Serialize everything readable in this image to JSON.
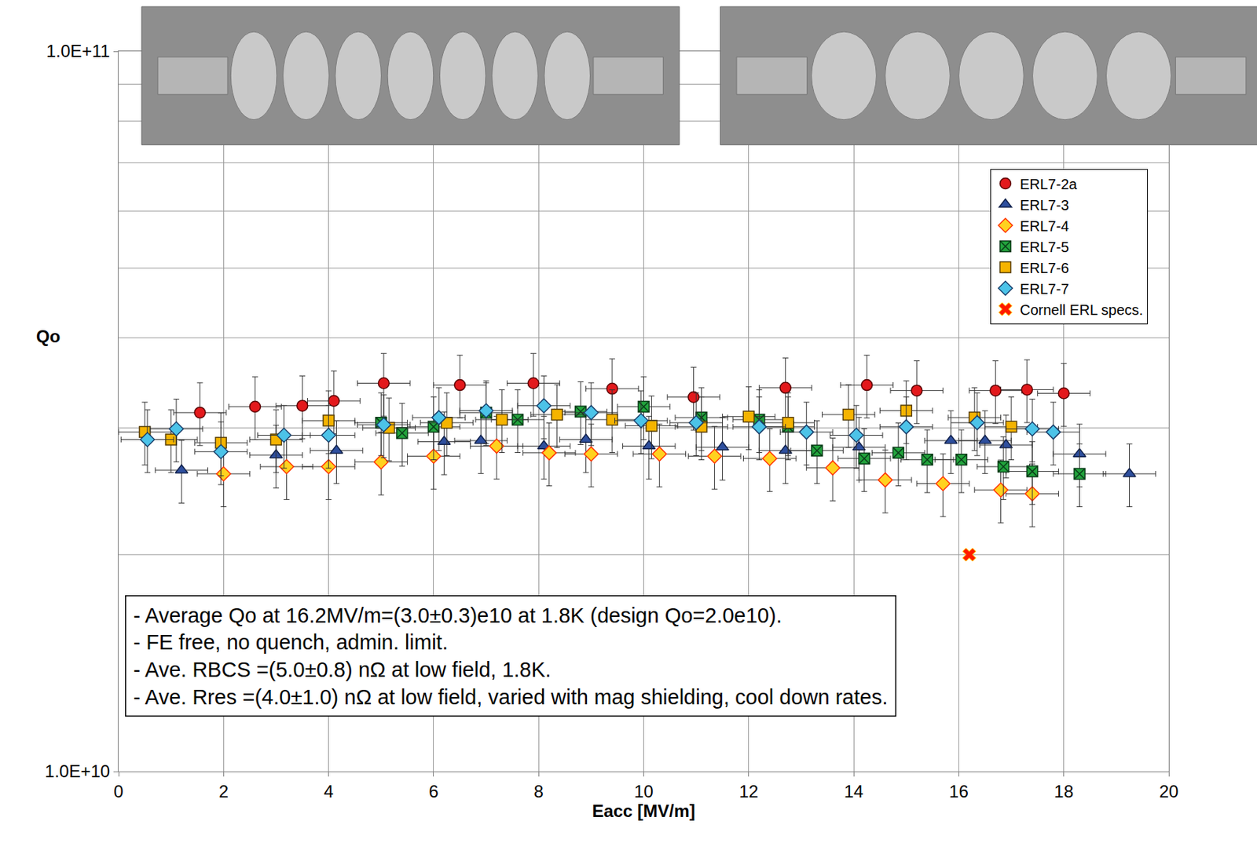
{
  "chart_data": {
    "type": "scatter",
    "x_label": "Eacc [MV/m]",
    "y_label": "Qo",
    "log": "y",
    "grid": true,
    "legend": "upper right",
    "xlim": [
      0,
      20
    ],
    "xticks": [
      0,
      2,
      4,
      6,
      8,
      10,
      12,
      14,
      16,
      18,
      20
    ],
    "ylim": [
      10000000000.0,
      100000000000.0
    ],
    "yticks": [
      {
        "value": 10000000000.0,
        "label": "1.0E+10"
      },
      {
        "value": 100000000000.0,
        "label": "1.0E+11"
      }
    ],
    "series": [
      {
        "name": "ERL7-2a",
        "color": "#e3191c",
        "marker": "circle",
        "x_err": 0.5,
        "y_err_percent": 10,
        "x": [
          1.55,
          2.6,
          3.5,
          4.1,
          5.05,
          6.5,
          7.9,
          9.4,
          10.95,
          12.7,
          14.25,
          15.2,
          16.7,
          17.3,
          18.0
        ],
        "values": [
          31500000000.0,
          32100000000.0,
          32200000000.0,
          32700000000.0,
          34600000000.0,
          34400000000.0,
          34600000000.0,
          34000000000.0,
          33100000000.0,
          34100000000.0,
          34400000000.0,
          33800000000.0,
          33800000000.0,
          33900000000.0,
          33500000000.0
        ]
      },
      {
        "name": "ERL7-3",
        "color": "#2e4f9e",
        "marker": "triangle-up",
        "x_err": 0.5,
        "y_err_percent": 10,
        "x": [
          1.2,
          3.0,
          4.15,
          6.2,
          6.9,
          8.1,
          8.9,
          10.1,
          11.5,
          12.7,
          14.1,
          15.85,
          16.5,
          16.9,
          18.3,
          19.25
        ],
        "values": [
          26200000000.0,
          27500000000.0,
          27900000000.0,
          28700000000.0,
          28800000000.0,
          28300000000.0,
          28900000000.0,
          28300000000.0,
          28200000000.0,
          27900000000.0,
          28200000000.0,
          28800000000.0,
          28800000000.0,
          28400000000.0,
          27600000000.0,
          25900000000.0
        ]
      },
      {
        "name": "ERL7-4",
        "color": "#ffd21f",
        "marker": "diamond",
        "x_err": 0.5,
        "y_err_percent": 10,
        "x": [
          2.0,
          3.2,
          4.0,
          5.0,
          6.0,
          7.2,
          8.2,
          9.0,
          10.3,
          11.35,
          12.4,
          13.6,
          14.6,
          15.7,
          16.8,
          17.4
        ],
        "values": [
          25900000000.0,
          26500000000.0,
          26500000000.0,
          26900000000.0,
          27400000000.0,
          28300000000.0,
          27700000000.0,
          27600000000.0,
          27600000000.0,
          27400000000.0,
          27200000000.0,
          26400000000.0,
          25400000000.0,
          25100000000.0,
          24600000000.0,
          24300000000.0
        ]
      },
      {
        "name": "ERL7-5",
        "color": "#22a33c",
        "marker": "square-x",
        "x_err": 0.5,
        "y_err_percent": 10,
        "x": [
          5.0,
          5.4,
          6.0,
          7.0,
          7.6,
          8.8,
          10.0,
          11.1,
          12.2,
          12.75,
          13.3,
          14.2,
          14.85,
          15.4,
          16.05,
          16.85,
          17.4,
          18.3
        ],
        "values": [
          30500000000.0,
          29500000000.0,
          30100000000.0,
          31500000000.0,
          30800000000.0,
          31600000000.0,
          32100000000.0,
          31000000000.0,
          30800000000.0,
          30100000000.0,
          27900000000.0,
          27200000000.0,
          27700000000.0,
          27100000000.0,
          27100000000.0,
          26500000000.0,
          26100000000.0,
          25900000000.0
        ]
      },
      {
        "name": "ERL7-6",
        "color": "#f5b400",
        "marker": "square",
        "x_err": 0.5,
        "y_err_percent": 10,
        "x": [
          0.5,
          1.0,
          1.95,
          3.0,
          4.0,
          5.15,
          6.25,
          7.3,
          8.35,
          9.4,
          10.15,
          11.1,
          12.0,
          12.75,
          13.9,
          15.0,
          16.3,
          17.0
        ],
        "values": [
          29600000000.0,
          28900000000.0,
          28600000000.0,
          28900000000.0,
          30700000000.0,
          30000000000.0,
          30500000000.0,
          30800000000.0,
          31300000000.0,
          30800000000.0,
          30200000000.0,
          30100000000.0,
          31100000000.0,
          30500000000.0,
          31300000000.0,
          31700000000.0,
          31000000000.0,
          30100000000.0
        ]
      },
      {
        "name": "ERL7-7",
        "color": "#4cc3e8",
        "marker": "diamond",
        "x_err": 0.5,
        "y_err_percent": 10,
        "x": [
          0.55,
          1.1,
          1.95,
          3.15,
          4.0,
          5.05,
          6.1,
          7.0,
          8.1,
          9.0,
          9.95,
          11.0,
          12.2,
          13.1,
          14.05,
          15.0,
          16.35,
          17.4,
          17.8
        ],
        "values": [
          28900000000.0,
          29900000000.0,
          27800000000.0,
          29300000000.0,
          29300000000.0,
          30300000000.0,
          31000000000.0,
          31700000000.0,
          32200000000.0,
          31500000000.0,
          30700000000.0,
          30500000000.0,
          30100000000.0,
          29600000000.0,
          29300000000.0,
          30100000000.0,
          30500000000.0,
          29900000000.0,
          29600000000.0
        ]
      },
      {
        "name": "Cornell ERL specs.",
        "color": "#ff1a00",
        "marker": "x",
        "x": [
          16.2
        ],
        "values": [
          20000000000.0
        ]
      }
    ],
    "notes": [
      "- Average Qo at 16.2MV/m=(3.0±0.3)e10 at 1.8K (design Qo=2.0e10).",
      "- FE free, no quench, admin. limit.",
      "- Ave. RBCS =(5.0±0.8) nΩ at low field, 1.8K.",
      "- Ave. Rres =(4.0±1.0) nΩ at low field, varied with mag shielding, cool down rates."
    ]
  }
}
